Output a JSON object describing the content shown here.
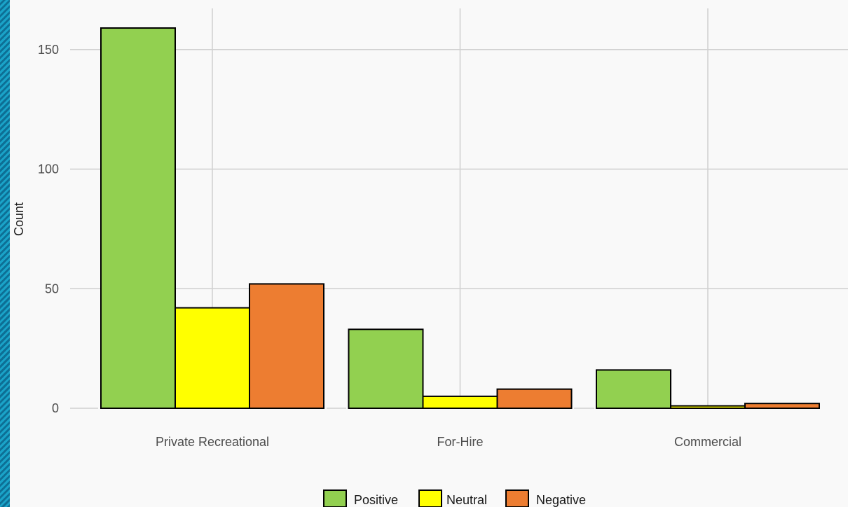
{
  "chart_data": {
    "type": "bar",
    "title": "",
    "xlabel": "",
    "ylabel": "Count",
    "ylim": [
      0,
      165
    ],
    "yticks": [
      0,
      50,
      100,
      150
    ],
    "categories": [
      "Private Recreational",
      "For-Hire",
      "Commercial"
    ],
    "series": [
      {
        "name": "Positive",
        "color": "#92d050",
        "values": [
          159,
          33,
          16
        ]
      },
      {
        "name": "Neutral",
        "color": "#ffff00",
        "values": [
          42,
          5,
          1
        ]
      },
      {
        "name": "Negative",
        "color": "#ed7d31",
        "values": [
          52,
          8,
          2
        ]
      }
    ],
    "grid": true,
    "legend_position": "bottom",
    "bar_outline_color": "#000000",
    "gridline_color": "#d0d0d0",
    "background_color": "#f9f9f9"
  }
}
